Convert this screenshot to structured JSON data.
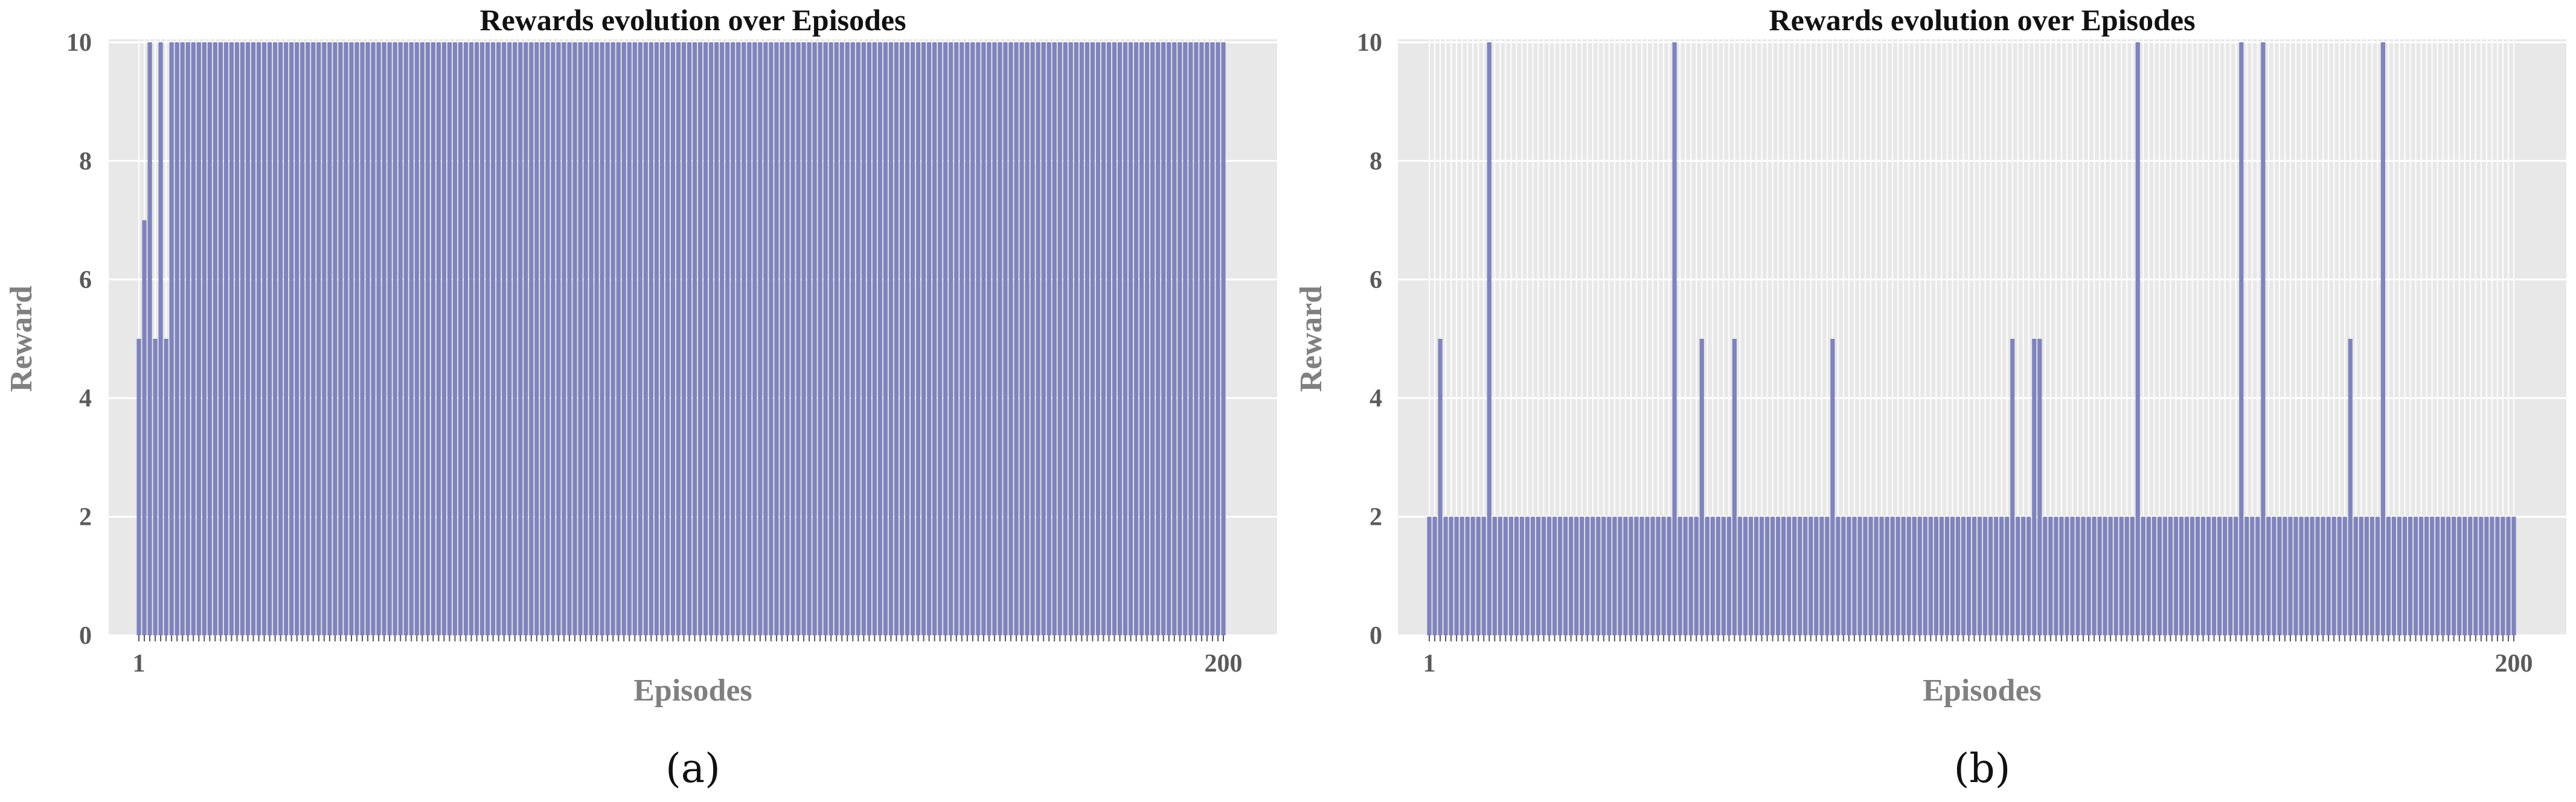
{
  "chart_data": [
    {
      "id": "a",
      "type": "bar",
      "title": "Rewards evolution over Episodes",
      "xlabel": "Episodes",
      "ylabel": "Reward",
      "caption": "(a)",
      "xlim": [
        1,
        200
      ],
      "ylim": [
        0,
        10
      ],
      "xticks": [
        1,
        200
      ],
      "yticks": [
        0,
        2,
        4,
        6,
        8,
        10
      ],
      "grid": true,
      "bar_color": "#7f84bd",
      "background": "#e8e8e8",
      "x": [
        1,
        2,
        3,
        4,
        5,
        6,
        7,
        8,
        9,
        10,
        11,
        12,
        13,
        14,
        15,
        16,
        17,
        18,
        19,
        20,
        21,
        22,
        23,
        24,
        25,
        26,
        27,
        28,
        29,
        30,
        31,
        32,
        33,
        34,
        35,
        36,
        37,
        38,
        39,
        40,
        41,
        42,
        43,
        44,
        45,
        46,
        47,
        48,
        49,
        50,
        51,
        52,
        53,
        54,
        55,
        56,
        57,
        58,
        59,
        60,
        61,
        62,
        63,
        64,
        65,
        66,
        67,
        68,
        69,
        70,
        71,
        72,
        73,
        74,
        75,
        76,
        77,
        78,
        79,
        80,
        81,
        82,
        83,
        84,
        85,
        86,
        87,
        88,
        89,
        90,
        91,
        92,
        93,
        94,
        95,
        96,
        97,
        98,
        99,
        100,
        101,
        102,
        103,
        104,
        105,
        106,
        107,
        108,
        109,
        110,
        111,
        112,
        113,
        114,
        115,
        116,
        117,
        118,
        119,
        120,
        121,
        122,
        123,
        124,
        125,
        126,
        127,
        128,
        129,
        130,
        131,
        132,
        133,
        134,
        135,
        136,
        137,
        138,
        139,
        140,
        141,
        142,
        143,
        144,
        145,
        146,
        147,
        148,
        149,
        150,
        151,
        152,
        153,
        154,
        155,
        156,
        157,
        158,
        159,
        160,
        161,
        162,
        163,
        164,
        165,
        166,
        167,
        168,
        169,
        170,
        171,
        172,
        173,
        174,
        175,
        176,
        177,
        178,
        179,
        180,
        181,
        182,
        183,
        184,
        185,
        186,
        187,
        188,
        189,
        190,
        191,
        192,
        193,
        194,
        195,
        196,
        197,
        198,
        199,
        200
      ],
      "values": [
        5,
        7,
        10,
        5,
        10,
        5,
        10,
        10,
        10,
        10,
        10,
        10,
        10,
        10,
        10,
        10,
        10,
        10,
        10,
        10,
        10,
        10,
        10,
        10,
        10,
        10,
        10,
        10,
        10,
        10,
        10,
        10,
        10,
        10,
        10,
        10,
        10,
        10,
        10,
        10,
        10,
        10,
        10,
        10,
        10,
        10,
        10,
        10,
        10,
        10,
        10,
        10,
        10,
        10,
        10,
        10,
        10,
        10,
        10,
        10,
        10,
        10,
        10,
        10,
        10,
        10,
        10,
        10,
        10,
        10,
        10,
        10,
        10,
        10,
        10,
        10,
        10,
        10,
        10,
        10,
        10,
        10,
        10,
        10,
        10,
        10,
        10,
        10,
        10,
        10,
        10,
        10,
        10,
        10,
        10,
        10,
        10,
        10,
        10,
        10,
        10,
        10,
        10,
        10,
        10,
        10,
        10,
        10,
        10,
        10,
        10,
        10,
        10,
        10,
        10,
        10,
        10,
        10,
        10,
        10,
        10,
        10,
        10,
        10,
        10,
        10,
        10,
        10,
        10,
        10,
        10,
        10,
        10,
        10,
        10,
        10,
        10,
        10,
        10,
        10,
        10,
        10,
        10,
        10,
        10,
        10,
        10,
        10,
        10,
        10,
        10,
        10,
        10,
        10,
        10,
        10,
        10,
        10,
        10,
        10,
        10,
        10,
        10,
        10,
        10,
        10,
        10,
        10,
        10,
        10,
        10,
        10,
        10,
        10,
        10,
        10,
        10,
        10,
        10,
        10,
        10,
        10,
        10,
        10,
        10,
        10,
        10,
        10,
        10,
        10,
        10,
        10,
        10,
        10,
        10,
        10,
        10,
        10,
        10,
        10
      ]
    },
    {
      "id": "b",
      "type": "bar",
      "title": "Rewards evolution over Episodes",
      "xlabel": "Episodes",
      "ylabel": "Reward",
      "caption": "(b)",
      "xlim": [
        1,
        200
      ],
      "ylim": [
        0,
        10
      ],
      "xticks": [
        1,
        200
      ],
      "yticks": [
        0,
        2,
        4,
        6,
        8,
        10
      ],
      "grid": true,
      "bar_color": "#7f84bd",
      "background": "#e8e8e8",
      "x": [
        1,
        2,
        3,
        4,
        5,
        6,
        7,
        8,
        9,
        10,
        11,
        12,
        13,
        14,
        15,
        16,
        17,
        18,
        19,
        20,
        21,
        22,
        23,
        24,
        25,
        26,
        27,
        28,
        29,
        30,
        31,
        32,
        33,
        34,
        35,
        36,
        37,
        38,
        39,
        40,
        41,
        42,
        43,
        44,
        45,
        46,
        47,
        48,
        49,
        50,
        51,
        52,
        53,
        54,
        55,
        56,
        57,
        58,
        59,
        60,
        61,
        62,
        63,
        64,
        65,
        66,
        67,
        68,
        69,
        70,
        71,
        72,
        73,
        74,
        75,
        76,
        77,
        78,
        79,
        80,
        81,
        82,
        83,
        84,
        85,
        86,
        87,
        88,
        89,
        90,
        91,
        92,
        93,
        94,
        95,
        96,
        97,
        98,
        99,
        100,
        101,
        102,
        103,
        104,
        105,
        106,
        107,
        108,
        109,
        110,
        111,
        112,
        113,
        114,
        115,
        116,
        117,
        118,
        119,
        120,
        121,
        122,
        123,
        124,
        125,
        126,
        127,
        128,
        129,
        130,
        131,
        132,
        133,
        134,
        135,
        136,
        137,
        138,
        139,
        140,
        141,
        142,
        143,
        144,
        145,
        146,
        147,
        148,
        149,
        150,
        151,
        152,
        153,
        154,
        155,
        156,
        157,
        158,
        159,
        160,
        161,
        162,
        163,
        164,
        165,
        166,
        167,
        168,
        169,
        170,
        171,
        172,
        173,
        174,
        175,
        176,
        177,
        178,
        179,
        180,
        181,
        182,
        183,
        184,
        185,
        186,
        187,
        188,
        189,
        190,
        191,
        192,
        193,
        194,
        195,
        196,
        197,
        198,
        199,
        200
      ],
      "values": [
        2,
        2,
        5,
        2,
        2,
        2,
        2,
        2,
        2,
        2,
        2,
        10,
        2,
        2,
        2,
        2,
        2,
        2,
        2,
        2,
        2,
        2,
        2,
        2,
        2,
        2,
        2,
        2,
        2,
        2,
        2,
        2,
        2,
        2,
        2,
        2,
        2,
        2,
        2,
        2,
        2,
        2,
        2,
        2,
        2,
        10,
        2,
        2,
        2,
        2,
        5,
        2,
        2,
        2,
        2,
        2,
        5,
        2,
        2,
        2,
        2,
        2,
        2,
        2,
        2,
        2,
        2,
        2,
        2,
        2,
        2,
        2,
        2,
        2,
        5,
        2,
        2,
        2,
        2,
        2,
        2,
        2,
        2,
        2,
        2,
        2,
        2,
        2,
        2,
        2,
        2,
        2,
        2,
        2,
        2,
        2,
        2,
        2,
        2,
        2,
        2,
        2,
        2,
        2,
        2,
        2,
        2,
        5,
        2,
        2,
        2,
        5,
        5,
        2,
        2,
        2,
        2,
        2,
        2,
        2,
        2,
        2,
        2,
        2,
        2,
        2,
        2,
        2,
        2,
        2,
        10,
        2,
        2,
        2,
        2,
        2,
        2,
        2,
        2,
        2,
        2,
        2,
        2,
        2,
        2,
        2,
        2,
        2,
        2,
        10,
        2,
        2,
        2,
        10,
        2,
        2,
        2,
        2,
        2,
        2,
        2,
        2,
        2,
        2,
        2,
        2,
        2,
        2,
        2,
        5,
        2,
        2,
        2,
        2,
        2,
        10,
        2,
        2,
        2,
        2,
        2,
        2,
        2,
        2,
        2,
        2,
        2,
        2,
        2,
        2,
        2,
        2,
        2,
        2,
        2,
        2,
        2,
        2,
        2,
        2
      ]
    }
  ]
}
